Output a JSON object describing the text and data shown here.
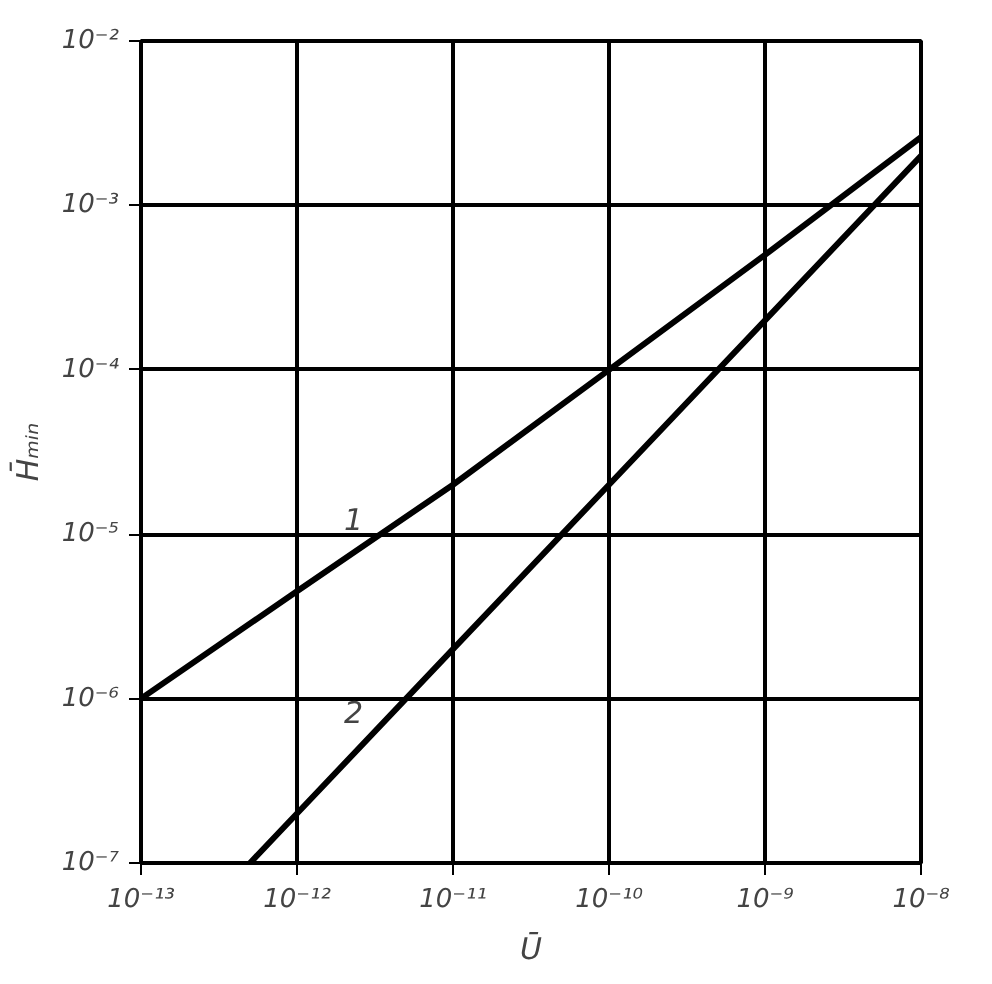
{
  "chart_data": {
    "type": "line",
    "xlabel": "Ū",
    "ylabel": "H̄ₘᵢₙ",
    "log": "xy",
    "grid": true,
    "marker": "none",
    "line_style": "solid",
    "xlim": [
      1e-13,
      1e-08
    ],
    "ylim": [
      1e-07,
      0.01
    ],
    "xticks": [
      {
        "value": 1e-13,
        "label": "10⁻¹³"
      },
      {
        "value": 1e-12,
        "label": "10⁻¹²"
      },
      {
        "value": 1e-11,
        "label": "10⁻¹¹"
      },
      {
        "value": 1e-10,
        "label": "10⁻¹⁰"
      },
      {
        "value": 1e-09,
        "label": "10⁻⁹"
      },
      {
        "value": 1e-08,
        "label": "10⁻⁸"
      }
    ],
    "yticks": [
      {
        "value": 1e-07,
        "label": "10⁻⁷"
      },
      {
        "value": 1e-06,
        "label": "10⁻⁶"
      },
      {
        "value": 1e-05,
        "label": "10⁻⁵"
      },
      {
        "value": 0.0001,
        "label": "10⁻⁴"
      },
      {
        "value": 0.001,
        "label": "10⁻³"
      },
      {
        "value": 0.01,
        "label": "10⁻²"
      }
    ],
    "series": [
      {
        "name": "1",
        "color": "#000000",
        "x": [
          1e-13,
          1e-12,
          1e-11,
          1e-10,
          1e-09,
          1e-08
        ],
        "values": [
          1e-06,
          4.5e-06,
          2e-05,
          0.0001,
          0.0005,
          0.0026
        ]
      },
      {
        "name": "2",
        "color": "#000000",
        "x": [
          5e-13,
          1e-12,
          1e-11,
          1e-10,
          1e-09,
          1e-08
        ],
        "values": [
          1e-07,
          2e-07,
          2e-06,
          2e-05,
          0.0002,
          0.002
        ]
      }
    ]
  }
}
